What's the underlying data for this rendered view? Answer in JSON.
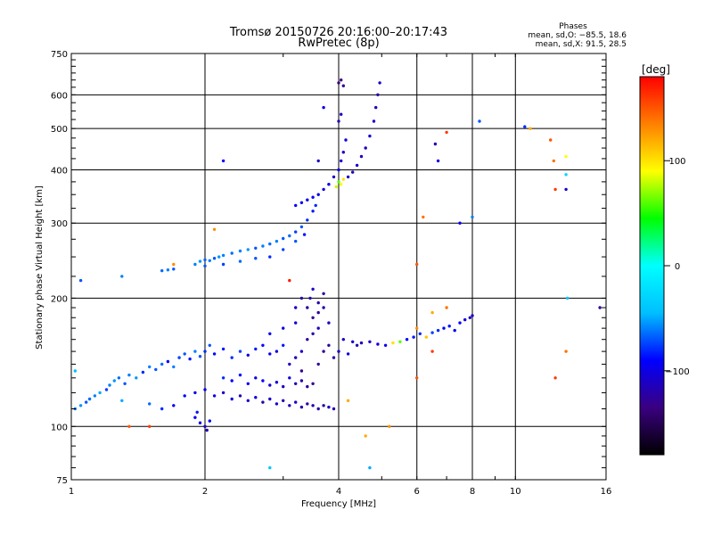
{
  "chart_data": {
    "type": "scatter",
    "title": "Tromsø 20150726 20:16:00–20:17:43",
    "subtitle": "RwPretec (8p)",
    "xlabel": "Frequency [MHz]",
    "ylabel": "Stationary phase Virtual Height [km]",
    "xscale": "log",
    "yscale": "log",
    "xlim": [
      1,
      16
    ],
    "ylim": [
      75,
      750
    ],
    "xticks": [
      1,
      2,
      4,
      6,
      8,
      10,
      16
    ],
    "yticks": [
      75,
      100,
      200,
      300,
      400,
      500,
      600,
      750
    ],
    "xtick_labels": [
      "1",
      "2",
      "4",
      "6",
      "8",
      "10",
      "16"
    ],
    "ytick_labels": [
      "75",
      "100",
      "200",
      "300",
      "400",
      "500",
      "600",
      "750"
    ],
    "grid": true,
    "legend_title": "Phases",
    "legend_lines": [
      "mean, sd,O: −85.5, 18.6",
      "mean, sd,X: 91.5, 28.5"
    ],
    "legend_position": "top-right",
    "colorbar": {
      "label": "[deg]",
      "range": [
        -180,
        180
      ],
      "ticks": [
        100,
        0,
        -100
      ],
      "tick_labels": [
        "100",
        "0",
        "−100"
      ],
      "colors": [
        "#000000",
        "#3a0080",
        "#0000ff",
        "#00bfff",
        "#00ffff",
        "#00ff00",
        "#ffff00",
        "#ff8000",
        "#ff0000"
      ]
    },
    "series": [
      {
        "color_by": "phase",
        "points": [
          [
            1.02,
            110,
            -60
          ],
          [
            1.05,
            112,
            -55
          ],
          [
            1.08,
            114,
            -70
          ],
          [
            1.1,
            116,
            -65
          ],
          [
            1.13,
            118,
            -60
          ],
          [
            1.16,
            120,
            -50
          ],
          [
            1.2,
            122,
            -75
          ],
          [
            1.22,
            125,
            -60
          ],
          [
            1.25,
            128,
            -55
          ],
          [
            1.28,
            130,
            -65
          ],
          [
            1.32,
            126,
            -70
          ],
          [
            1.35,
            132,
            -60
          ],
          [
            1.4,
            130,
            -55
          ],
          [
            1.45,
            134,
            -80
          ],
          [
            1.5,
            138,
            -60
          ],
          [
            1.55,
            136,
            -70
          ],
          [
            1.6,
            140,
            -65
          ],
          [
            1.65,
            142,
            -90
          ],
          [
            1.7,
            138,
            -60
          ],
          [
            1.75,
            145,
            -75
          ],
          [
            1.8,
            148,
            -70
          ],
          [
            1.85,
            144,
            -85
          ],
          [
            1.9,
            150,
            -60
          ],
          [
            1.95,
            146,
            -70
          ],
          [
            1.02,
            135,
            -45
          ],
          [
            1.3,
            115,
            -50
          ],
          [
            1.5,
            113,
            -65
          ],
          [
            1.6,
            110,
            -80
          ],
          [
            1.7,
            112,
            -95
          ],
          [
            1.8,
            118,
            -90
          ],
          [
            1.9,
            120,
            -100
          ],
          [
            2.0,
            122,
            -95
          ],
          [
            2.1,
            118,
            -100
          ],
          [
            2.2,
            120,
            -110
          ],
          [
            2.3,
            116,
            -105
          ],
          [
            2.4,
            118,
            -115
          ],
          [
            2.5,
            115,
            -110
          ],
          [
            2.6,
            117,
            -100
          ],
          [
            2.7,
            114,
            -120
          ],
          [
            2.8,
            116,
            -110
          ],
          [
            2.9,
            113,
            -105
          ],
          [
            3.0,
            115,
            -120
          ],
          [
            3.1,
            112,
            -115
          ],
          [
            3.2,
            114,
            -110
          ],
          [
            3.3,
            111,
            -120
          ],
          [
            3.4,
            113,
            -125
          ],
          [
            3.5,
            112,
            -115
          ],
          [
            3.6,
            110,
            -120
          ],
          [
            3.7,
            112,
            -125
          ],
          [
            3.8,
            111,
            -110
          ],
          [
            3.9,
            110,
            -120
          ],
          [
            1.9,
            105,
            -95
          ],
          [
            1.95,
            102,
            -100
          ],
          [
            2.0,
            100,
            -110
          ],
          [
            2.02,
            98,
            -115
          ],
          [
            2.05,
            103,
            -90
          ],
          [
            1.92,
            108,
            -85
          ],
          [
            2.0,
            150,
            -80
          ],
          [
            2.05,
            155,
            -70
          ],
          [
            2.1,
            148,
            -90
          ],
          [
            2.2,
            152,
            -85
          ],
          [
            2.3,
            145,
            -80
          ],
          [
            2.4,
            150,
            -75
          ],
          [
            2.5,
            147,
            -95
          ],
          [
            2.6,
            152,
            -85
          ],
          [
            2.7,
            155,
            -90
          ],
          [
            2.8,
            148,
            -95
          ],
          [
            2.9,
            150,
            -100
          ],
          [
            3.0,
            155,
            -85
          ],
          [
            2.2,
            130,
            -80
          ],
          [
            2.3,
            128,
            -90
          ],
          [
            2.4,
            132,
            -85
          ],
          [
            2.5,
            126,
            -95
          ],
          [
            2.6,
            130,
            -100
          ],
          [
            2.7,
            128,
            -90
          ],
          [
            2.8,
            125,
            -105
          ],
          [
            2.9,
            127,
            -100
          ],
          [
            3.0,
            124,
            -110
          ],
          [
            3.1,
            130,
            -100
          ],
          [
            3.2,
            126,
            -115
          ],
          [
            3.3,
            128,
            -120
          ],
          [
            3.4,
            124,
            -125
          ],
          [
            3.5,
            126,
            -130
          ],
          [
            3.1,
            140,
            -115
          ],
          [
            3.2,
            145,
            -120
          ],
          [
            3.3,
            150,
            -110
          ],
          [
            3.4,
            160,
            -125
          ],
          [
            3.5,
            165,
            -120
          ],
          [
            3.6,
            170,
            -115
          ],
          [
            3.5,
            180,
            -130
          ],
          [
            3.6,
            185,
            -125
          ],
          [
            3.7,
            190,
            -120
          ],
          [
            3.8,
            175,
            -115
          ],
          [
            3.4,
            190,
            -125
          ],
          [
            3.2,
            175,
            -105
          ],
          [
            3.0,
            170,
            -100
          ],
          [
            2.8,
            165,
            -95
          ],
          [
            3.3,
            135,
            -130
          ],
          [
            3.6,
            140,
            -125
          ],
          [
            3.7,
            150,
            -130
          ],
          [
            3.8,
            155,
            -125
          ],
          [
            3.9,
            145,
            -120
          ],
          [
            3.45,
            200,
            -115
          ],
          [
            3.5,
            210,
            -110
          ],
          [
            3.6,
            195,
            -120
          ],
          [
            3.7,
            205,
            -125
          ],
          [
            3.2,
            190,
            -110
          ],
          [
            3.3,
            200,
            -120
          ],
          [
            1.6,
            232,
            -65
          ],
          [
            1.65,
            233,
            -60
          ],
          [
            1.7,
            234,
            -70
          ],
          [
            1.9,
            240,
            -60
          ],
          [
            1.95,
            244,
            -55
          ],
          [
            2.0,
            246,
            -65
          ],
          [
            2.05,
            245,
            -60
          ],
          [
            2.1,
            248,
            -70
          ],
          [
            2.15,
            250,
            -55
          ],
          [
            2.2,
            252,
            -60
          ],
          [
            2.3,
            255,
            -65
          ],
          [
            2.4,
            258,
            -60
          ],
          [
            2.5,
            260,
            -55
          ],
          [
            2.6,
            262,
            -70
          ],
          [
            2.7,
            265,
            -60
          ],
          [
            2.8,
            268,
            -65
          ],
          [
            2.9,
            272,
            -60
          ],
          [
            3.0,
            276,
            -70
          ],
          [
            3.1,
            280,
            -65
          ],
          [
            3.2,
            286,
            -75
          ],
          [
            3.3,
            294,
            -70
          ],
          [
            3.4,
            305,
            -80
          ],
          [
            3.5,
            320,
            -85
          ],
          [
            3.55,
            330,
            -80
          ],
          [
            2.0,
            238,
            -70
          ],
          [
            2.2,
            240,
            -75
          ],
          [
            2.4,
            244,
            -65
          ],
          [
            2.6,
            248,
            -70
          ],
          [
            2.8,
            250,
            -80
          ],
          [
            3.0,
            260,
            -75
          ],
          [
            3.2,
            272,
            -70
          ],
          [
            3.35,
            282,
            -85
          ],
          [
            3.2,
            330,
            -90
          ],
          [
            3.3,
            335,
            -95
          ],
          [
            3.4,
            340,
            -100
          ],
          [
            3.5,
            345,
            -90
          ],
          [
            3.6,
            350,
            -95
          ],
          [
            3.7,
            360,
            -100
          ],
          [
            3.8,
            370,
            -95
          ],
          [
            3.9,
            385,
            -110
          ],
          [
            4.0,
            400,
            -100
          ],
          [
            4.05,
            420,
            -105
          ],
          [
            4.1,
            440,
            -110
          ],
          [
            4.15,
            470,
            -100
          ],
          [
            4.0,
            375,
            60
          ],
          [
            4.05,
            370,
            90
          ],
          [
            4.1,
            380,
            100
          ],
          [
            3.95,
            365,
            80
          ],
          [
            4.2,
            385,
            -110
          ],
          [
            4.3,
            395,
            -115
          ],
          [
            4.4,
            410,
            -105
          ],
          [
            4.5,
            430,
            -110
          ],
          [
            4.6,
            450,
            -115
          ],
          [
            4.7,
            480,
            -105
          ],
          [
            4.8,
            520,
            -110
          ],
          [
            4.85,
            560,
            -115
          ],
          [
            4.9,
            600,
            -120
          ],
          [
            4.95,
            640,
            -110
          ],
          [
            4.0,
            640,
            -140
          ],
          [
            4.05,
            650,
            -135
          ],
          [
            4.1,
            630,
            -130
          ],
          [
            4.0,
            520,
            -120
          ],
          [
            4.05,
            540,
            -115
          ],
          [
            3.6,
            420,
            -110
          ],
          [
            3.7,
            560,
            -100
          ],
          [
            2.2,
            420,
            -90
          ],
          [
            4.1,
            160,
            -110
          ],
          [
            4.3,
            158,
            -105
          ],
          [
            4.5,
            157,
            -115
          ],
          [
            4.7,
            158,
            -110
          ],
          [
            4.9,
            156,
            -100
          ],
          [
            5.1,
            155,
            -95
          ],
          [
            5.3,
            157,
            100
          ],
          [
            5.5,
            158,
            60
          ],
          [
            5.7,
            160,
            -90
          ],
          [
            5.9,
            162,
            -85
          ],
          [
            6.1,
            165,
            -80
          ],
          [
            6.3,
            162,
            110
          ],
          [
            6.5,
            166,
            -75
          ],
          [
            6.7,
            168,
            -80
          ],
          [
            6.9,
            170,
            -90
          ],
          [
            7.1,
            172,
            -85
          ],
          [
            7.3,
            168,
            -95
          ],
          [
            7.5,
            175,
            -90
          ],
          [
            7.7,
            178,
            -100
          ],
          [
            7.9,
            180,
            -110
          ],
          [
            8.0,
            182,
            -115
          ],
          [
            4.0,
            150,
            -110
          ],
          [
            4.2,
            148,
            -100
          ],
          [
            4.4,
            155,
            -115
          ],
          [
            6.0,
            170,
            130
          ],
          [
            6.5,
            185,
            120
          ],
          [
            7.0,
            190,
            140
          ],
          [
            1.35,
            100,
            150
          ],
          [
            1.5,
            100,
            160
          ],
          [
            1.7,
            240,
            130
          ],
          [
            4.2,
            115,
            120
          ],
          [
            4.6,
            95,
            120
          ],
          [
            5.2,
            100,
            130
          ],
          [
            6.0,
            240,
            150
          ],
          [
            6.2,
            310,
            140
          ],
          [
            6.0,
            130,
            150
          ],
          [
            6.5,
            150,
            160
          ],
          [
            10.8,
            500,
            120
          ],
          [
            12.0,
            470,
            150
          ],
          [
            12.2,
            420,
            140
          ],
          [
            12.3,
            360,
            160
          ],
          [
            13.0,
            430,
            90
          ],
          [
            13.0,
            390,
            -30
          ],
          [
            13.0,
            360,
            -110
          ],
          [
            13.1,
            200,
            -40
          ],
          [
            13.0,
            150,
            140
          ],
          [
            12.3,
            130,
            160
          ],
          [
            15.5,
            190,
            -130
          ],
          [
            7.5,
            300,
            -90
          ],
          [
            8.0,
            310,
            -60
          ],
          [
            8.3,
            520,
            -70
          ],
          [
            4.7,
            80,
            -50
          ],
          [
            3.1,
            220,
            170
          ],
          [
            2.1,
            290,
            130
          ],
          [
            2.8,
            80,
            -40
          ],
          [
            1.05,
            220,
            -70
          ],
          [
            1.3,
            225,
            -60
          ],
          [
            6.7,
            420,
            -100
          ],
          [
            6.6,
            460,
            -120
          ],
          [
            7.0,
            490,
            160
          ],
          [
            10.5,
            505,
            -80
          ]
        ]
      }
    ]
  }
}
